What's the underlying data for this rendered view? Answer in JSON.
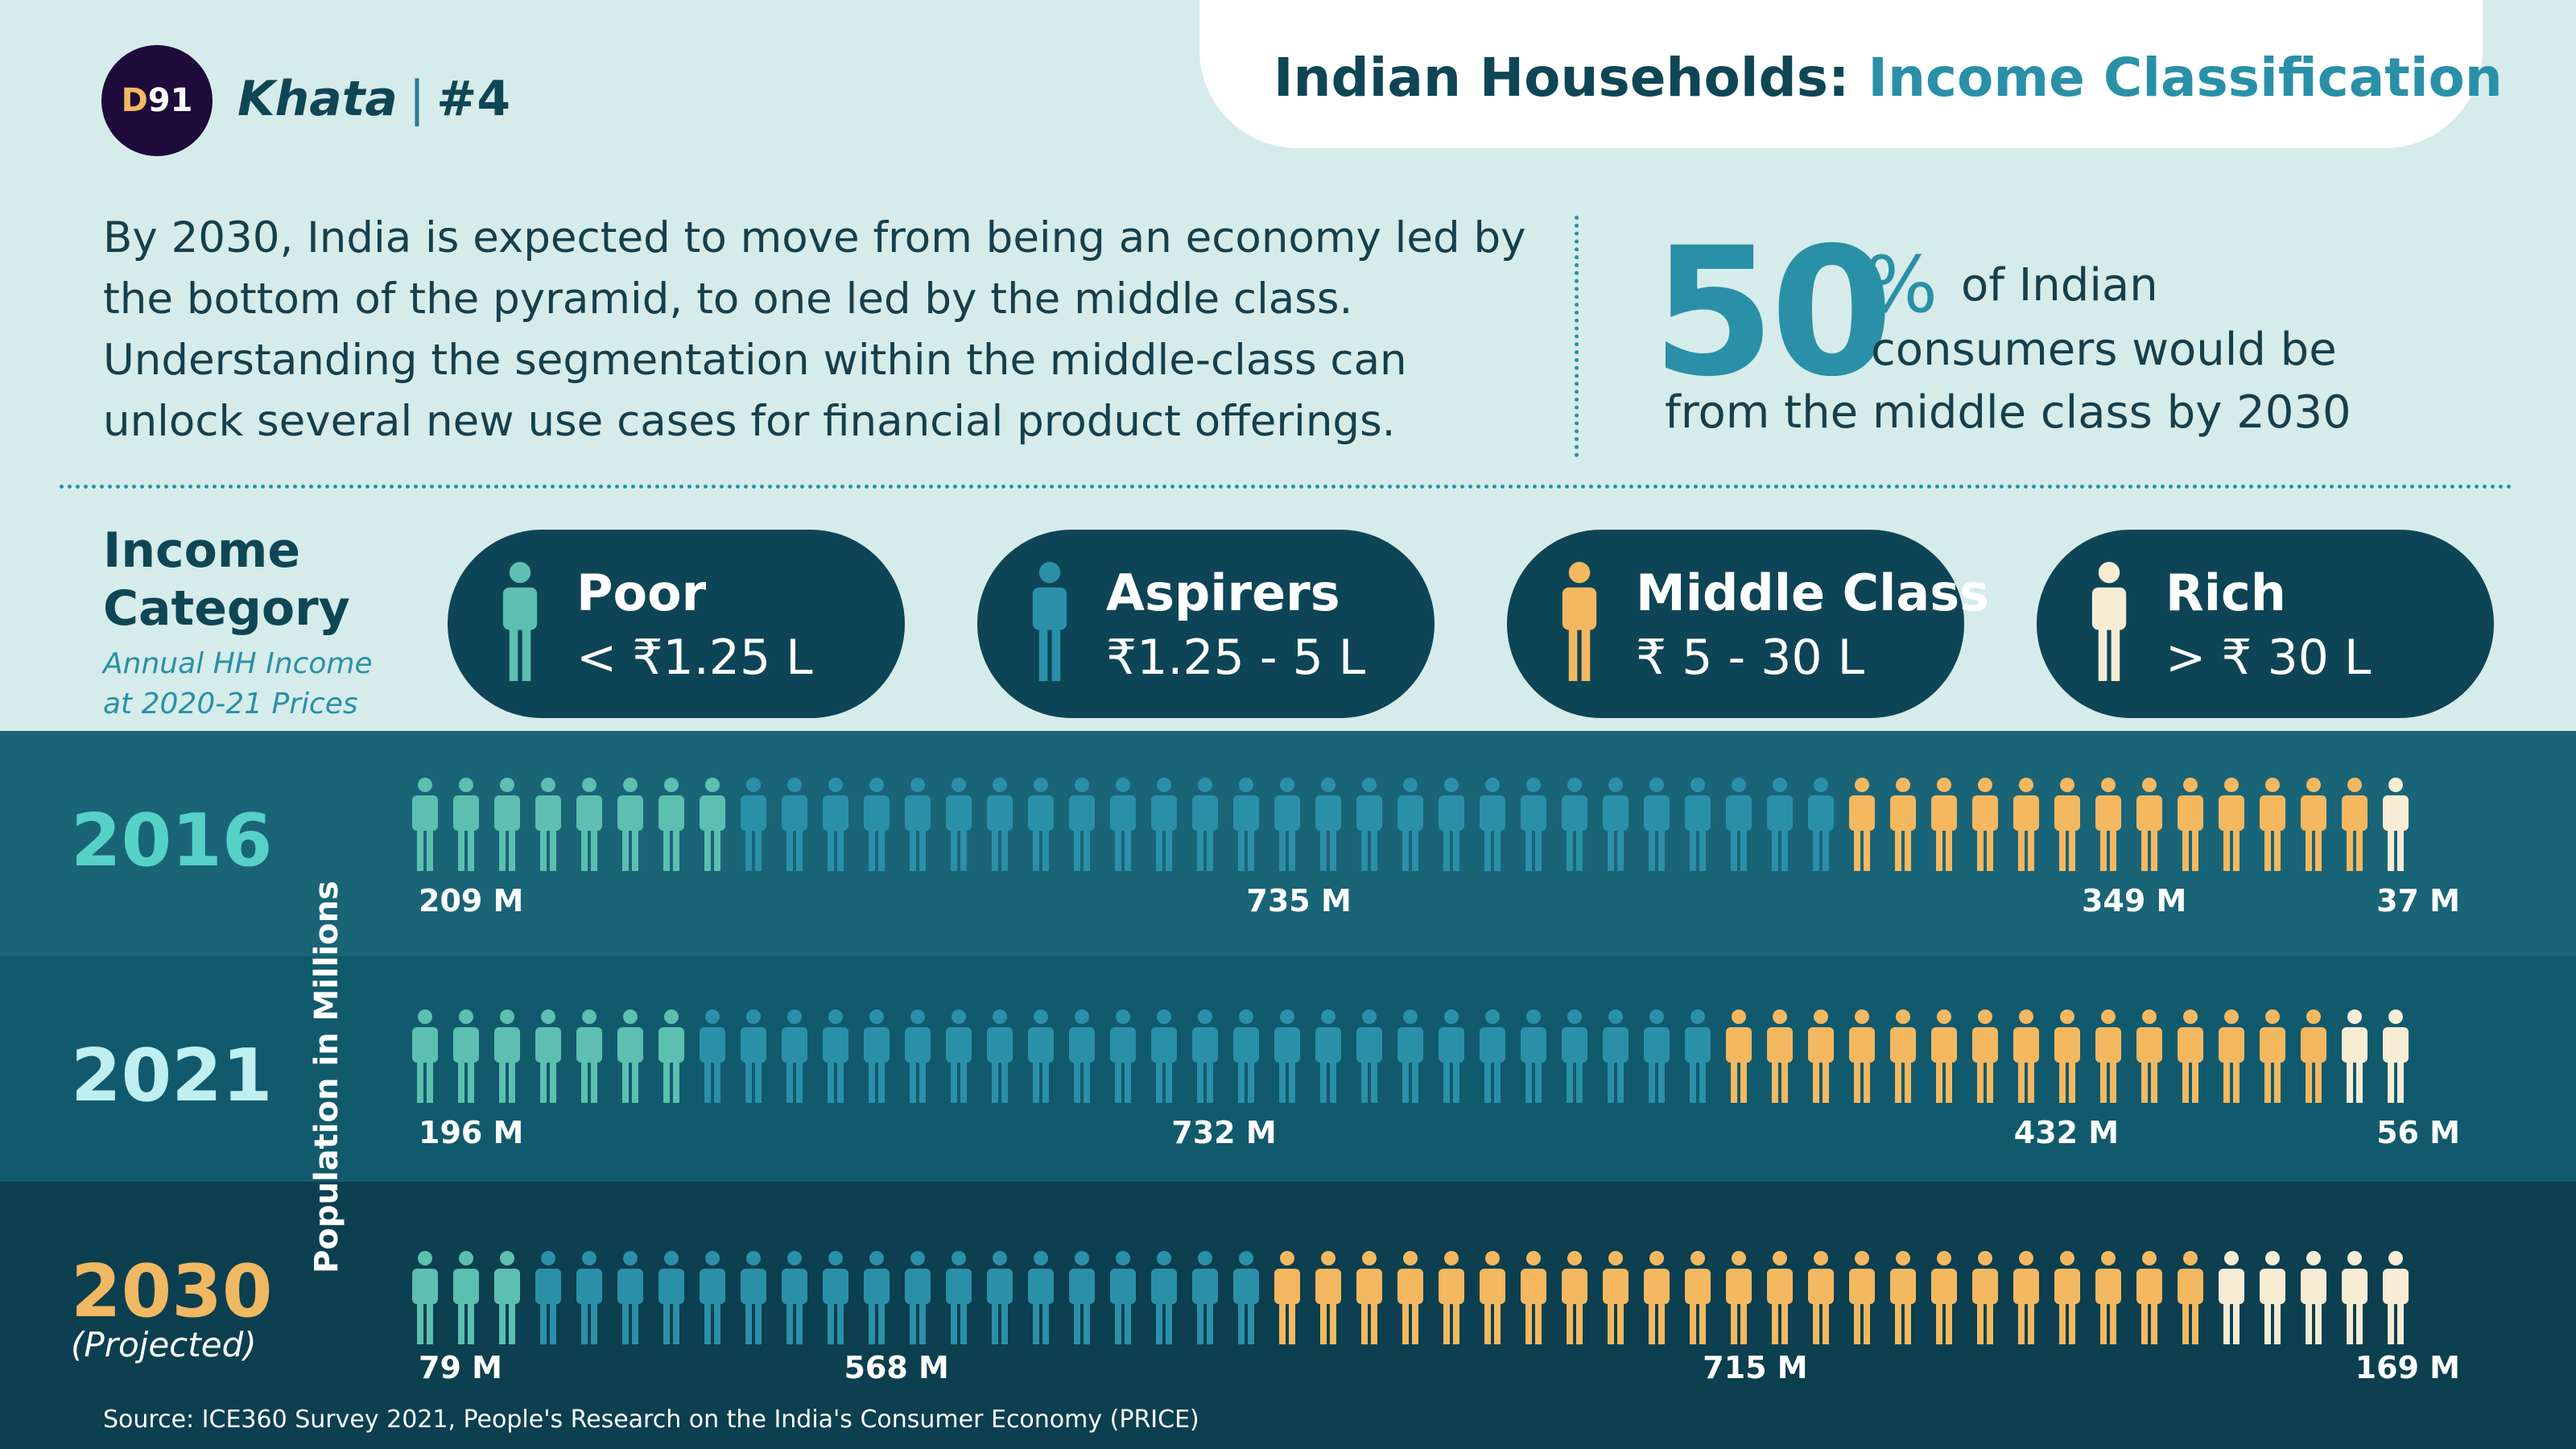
{
  "header": {
    "logo_prefix": "D",
    "logo_suffix": "91",
    "brand": "Khata",
    "separator": "|",
    "issue": "#4",
    "title_part1": "Indian Households:",
    "title_part2": "Income Classification"
  },
  "intro": "By 2030, India is expected to move from being an economy led by the bottom of the pyramid, to one led by the middle class. Understanding the segmentation within the middle-class can unlock several new use cases for financial product offerings.",
  "stat": {
    "number": "50",
    "unit": "%",
    "line1": "of Indian",
    "line2": "consumers would be",
    "line3": "from the middle class by 2030"
  },
  "income_category": {
    "title_line1": "Income",
    "title_line2": "Category",
    "subtitle_line1": "Annual HH Income",
    "subtitle_line2": "at 2020-21 Prices"
  },
  "categories": [
    {
      "name": "Poor",
      "range": "< ₹1.25 L",
      "color": "#5cbfb0"
    },
    {
      "name": "Aspirers",
      "range": "₹1.25 - 5 L",
      "color": "#2a90a8"
    },
    {
      "name": "Middle Class",
      "range": "₹ 5 - 30 L",
      "color": "#f4b860"
    },
    {
      "name": "Rich",
      "range": "> ₹ 30 L",
      "color": "#f7ecd4"
    }
  ],
  "colors": {
    "background": "#d6ecea",
    "dark_teal": "#0e4556",
    "accent": "#2a90a8"
  },
  "chart_data": {
    "type": "bar",
    "stacked": true,
    "orientation": "horizontal",
    "ylabel": "Population in Millions",
    "unit": "M",
    "years": [
      {
        "label": "2016",
        "note": ""
      },
      {
        "label": "2021",
        "note": ""
      },
      {
        "label": "2030",
        "note": "(Projected)"
      }
    ],
    "series": [
      {
        "name": "Poor",
        "values": [
          209,
          196,
          79
        ]
      },
      {
        "name": "Aspirers",
        "values": [
          735,
          732,
          568
        ]
      },
      {
        "name": "Middle Class",
        "values": [
          349,
          432,
          715
        ]
      },
      {
        "name": "Rich",
        "values": [
          37,
          56,
          169
        ]
      }
    ],
    "value_labels": [
      [
        "209 M",
        "735 M",
        "349 M",
        "37 M"
      ],
      [
        "196 M",
        "732 M",
        "432 M",
        "56 M"
      ],
      [
        "79 M",
        "568 M",
        "715 M",
        "169 M"
      ]
    ]
  },
  "source": "Source: ICE360 Survey 2021, People's Research on the India's Consumer Economy (PRICE)"
}
